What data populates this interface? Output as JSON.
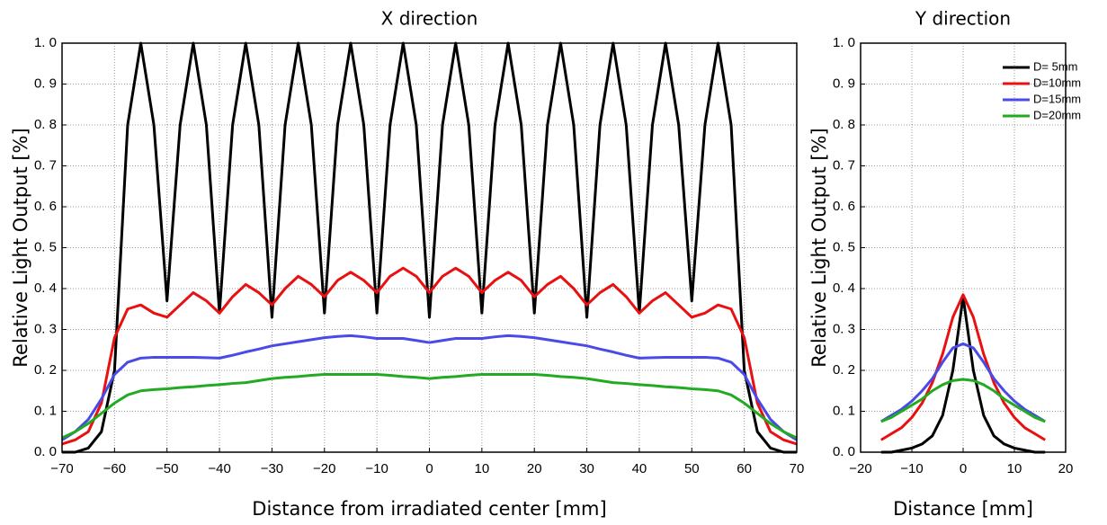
{
  "chart_data": [
    {
      "type": "line",
      "title": "X direction",
      "x_label": "Distance from irradiated center [mm]",
      "y_label": "Relative Light Output [%]",
      "xlim": [
        -70,
        70
      ],
      "xticks": [
        {
          "value": -70,
          "label": "−70"
        },
        {
          "value": -60,
          "label": "−60"
        },
        {
          "value": -50,
          "label": "−50"
        },
        {
          "value": -40,
          "label": "−40"
        },
        {
          "value": -30,
          "label": "−30"
        },
        {
          "value": -20,
          "label": "−20"
        },
        {
          "value": -10,
          "label": "−10"
        },
        0,
        10,
        20,
        30,
        40,
        50,
        60,
        70
      ],
      "ylim": [
        0,
        1
      ],
      "yticks": [
        {
          "value": 0,
          "label": "0. 0"
        },
        {
          "value": 0.1,
          "label": "0. 1"
        },
        {
          "value": 0.2,
          "label": "0. 2"
        },
        {
          "value": 0.3,
          "label": "0. 3"
        },
        {
          "value": 0.4,
          "label": "0. 4"
        },
        {
          "value": 0.5,
          "label": "0. 5"
        },
        {
          "value": 0.6,
          "label": "0. 6"
        },
        {
          "value": 0.7,
          "label": "0. 7"
        },
        {
          "value": 0.8,
          "label": "0. 8"
        },
        {
          "value": 0.9,
          "label": "0. 9"
        },
        {
          "value": 1,
          "label": "1. 0"
        }
      ],
      "grid": true,
      "x": [
        -70,
        -67.5,
        -65,
        -62.5,
        -60,
        -57.5,
        -55,
        -52.5,
        -50,
        -47.5,
        -45,
        -42.5,
        -40,
        -37.5,
        -35,
        -32.5,
        -30,
        -27.5,
        -25,
        -22.5,
        -20,
        -17.5,
        -15,
        -12.5,
        -10,
        -7.5,
        -5,
        -2.5,
        0,
        2.5,
        5,
        7.5,
        10,
        12.5,
        15,
        17.5,
        20,
        22.5,
        25,
        27.5,
        30,
        32.5,
        35,
        37.5,
        40,
        42.5,
        45,
        47.5,
        50,
        52.5,
        55,
        57.5,
        60,
        62.5,
        65,
        67.5,
        70
      ],
      "series": [
        {
          "color": "#000000",
          "values": [
            0,
            0,
            0.01,
            0.05,
            0.2,
            0.8,
            1.0,
            0.8,
            0.37,
            0.8,
            1.0,
            0.8,
            0.34,
            0.8,
            1.0,
            0.8,
            0.33,
            0.8,
            1.0,
            0.8,
            0.34,
            0.8,
            1.0,
            0.8,
            0.34,
            0.8,
            1.0,
            0.8,
            0.33,
            0.8,
            1.0,
            0.8,
            0.34,
            0.8,
            1.0,
            0.8,
            0.34,
            0.8,
            1.0,
            0.8,
            0.33,
            0.8,
            1.0,
            0.8,
            0.34,
            0.8,
            1.0,
            0.8,
            0.37,
            0.8,
            1.0,
            0.8,
            0.2,
            0.05,
            0.01,
            0,
            0
          ]
        },
        {
          "color": "#e81010",
          "values": [
            0.02,
            0.03,
            0.05,
            0.12,
            0.28,
            0.35,
            0.36,
            0.34,
            0.33,
            0.36,
            0.39,
            0.37,
            0.34,
            0.38,
            0.41,
            0.39,
            0.36,
            0.4,
            0.43,
            0.41,
            0.38,
            0.42,
            0.44,
            0.42,
            0.39,
            0.43,
            0.45,
            0.43,
            0.39,
            0.43,
            0.45,
            0.43,
            0.39,
            0.42,
            0.44,
            0.42,
            0.38,
            0.41,
            0.43,
            0.4,
            0.36,
            0.39,
            0.41,
            0.38,
            0.34,
            0.37,
            0.39,
            0.36,
            0.33,
            0.34,
            0.36,
            0.35,
            0.28,
            0.12,
            0.05,
            0.03,
            0.02
          ]
        },
        {
          "color": "#4a4ae8",
          "values": [
            0.03,
            0.05,
            0.08,
            0.13,
            0.19,
            0.22,
            0.23,
            0.232,
            0.232,
            0.232,
            0.232,
            0.231,
            0.23,
            0.237,
            0.245,
            0.252,
            0.26,
            0.265,
            0.27,
            0.275,
            0.28,
            0.283,
            0.285,
            0.282,
            0.278,
            0.278,
            0.278,
            0.273,
            0.268,
            0.273,
            0.278,
            0.278,
            0.278,
            0.282,
            0.285,
            0.283,
            0.28,
            0.275,
            0.27,
            0.265,
            0.26,
            0.252,
            0.245,
            0.237,
            0.23,
            0.231,
            0.232,
            0.232,
            0.232,
            0.232,
            0.23,
            0.22,
            0.19,
            0.13,
            0.08,
            0.05,
            0.03
          ]
        },
        {
          "color": "#22aa22",
          "values": [
            0.035,
            0.05,
            0.07,
            0.095,
            0.12,
            0.14,
            0.15,
            0.153,
            0.155,
            0.158,
            0.16,
            0.163,
            0.165,
            0.168,
            0.17,
            0.175,
            0.18,
            0.183,
            0.185,
            0.188,
            0.19,
            0.19,
            0.19,
            0.19,
            0.19,
            0.188,
            0.185,
            0.183,
            0.18,
            0.183,
            0.185,
            0.188,
            0.19,
            0.19,
            0.19,
            0.19,
            0.19,
            0.188,
            0.185,
            0.183,
            0.18,
            0.175,
            0.17,
            0.168,
            0.165,
            0.163,
            0.16,
            0.158,
            0.155,
            0.153,
            0.15,
            0.14,
            0.12,
            0.095,
            0.07,
            0.05,
            0.035
          ]
        }
      ]
    },
    {
      "type": "line",
      "title": "Y direction",
      "x_label": "Distance [mm]",
      "y_label": "Relative Light Output [%]",
      "xlim": [
        -20,
        20
      ],
      "xticks": [
        {
          "value": -20,
          "label": "−20"
        },
        {
          "value": -10,
          "label": "−10"
        },
        0,
        10,
        20
      ],
      "ylim": [
        0,
        1
      ],
      "yticks": [
        {
          "value": 0,
          "label": "0. 0"
        },
        {
          "value": 0.1,
          "label": "0. 1"
        },
        {
          "value": 0.2,
          "label": "0. 2"
        },
        {
          "value": 0.3,
          "label": "0. 3"
        },
        {
          "value": 0.4,
          "label": "0. 4"
        },
        {
          "value": 0.5,
          "label": "0. 5"
        },
        {
          "value": 0.6,
          "label": "0. 6"
        },
        {
          "value": 0.7,
          "label": "0. 7"
        },
        {
          "value": 0.8,
          "label": "0. 8"
        },
        {
          "value": 0.9,
          "label": "0. 9"
        },
        {
          "value": 1,
          "label": "1. 0"
        }
      ],
      "grid": true,
      "legend": "upper right",
      "x": [
        -16,
        -14,
        -12,
        -10,
        -8,
        -6,
        -4,
        -2,
        0,
        2,
        4,
        6,
        8,
        10,
        12,
        14,
        16
      ],
      "series": [
        {
          "name": "D= 5mm",
          "color": "#000000",
          "values": [
            0,
            0,
            0.005,
            0.01,
            0.02,
            0.04,
            0.09,
            0.2,
            0.38,
            0.2,
            0.09,
            0.04,
            0.02,
            0.01,
            0.005,
            0,
            0
          ]
        },
        {
          "name": "D=10mm",
          "color": "#e81010",
          "values": [
            0.03,
            0.045,
            0.06,
            0.085,
            0.12,
            0.17,
            0.24,
            0.33,
            0.385,
            0.33,
            0.24,
            0.17,
            0.12,
            0.085,
            0.06,
            0.045,
            0.03
          ]
        },
        {
          "name": "D=15mm",
          "color": "#4a4ae8",
          "values": [
            0.075,
            0.09,
            0.105,
            0.125,
            0.15,
            0.18,
            0.22,
            0.255,
            0.265,
            0.255,
            0.22,
            0.18,
            0.15,
            0.125,
            0.105,
            0.09,
            0.075
          ]
        },
        {
          "name": "D=20mm",
          "color": "#22aa22",
          "values": [
            0.075,
            0.085,
            0.1,
            0.115,
            0.13,
            0.15,
            0.165,
            0.175,
            0.178,
            0.175,
            0.165,
            0.15,
            0.13,
            0.115,
            0.1,
            0.085,
            0.075
          ]
        }
      ]
    }
  ]
}
